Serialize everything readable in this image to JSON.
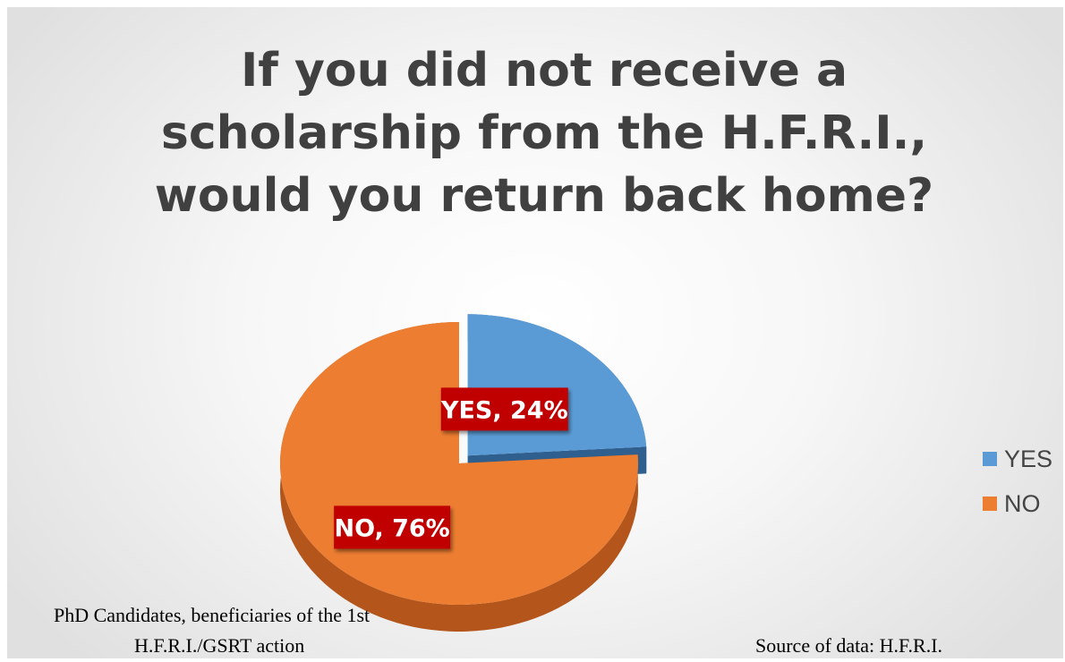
{
  "chart_data": {
    "type": "pie",
    "title": "If you did not receive a scholarship from the H.F.R.I., would you return back home?",
    "slices": [
      {
        "name": "YES",
        "value": 24,
        "label": "YES, 24%",
        "color": "#5b9bd5",
        "side_color": "#2e5f8e"
      },
      {
        "name": "NO",
        "value": 76,
        "label": "NO, 76%",
        "color": "#ed7d31",
        "side_color": "#b4561c"
      }
    ],
    "exploded": "YES",
    "data_label_bg": "#c00000",
    "data_label_color": "#ffffff",
    "legend": {
      "placement": "right",
      "entries": [
        "YES",
        "NO"
      ]
    }
  },
  "notes": {
    "population_line1": "PhD Candidates, beneficiaries of the 1st",
    "population_line2": "H.F.R.I./GSRT action",
    "source": "Source of data: H.F.R.I."
  }
}
